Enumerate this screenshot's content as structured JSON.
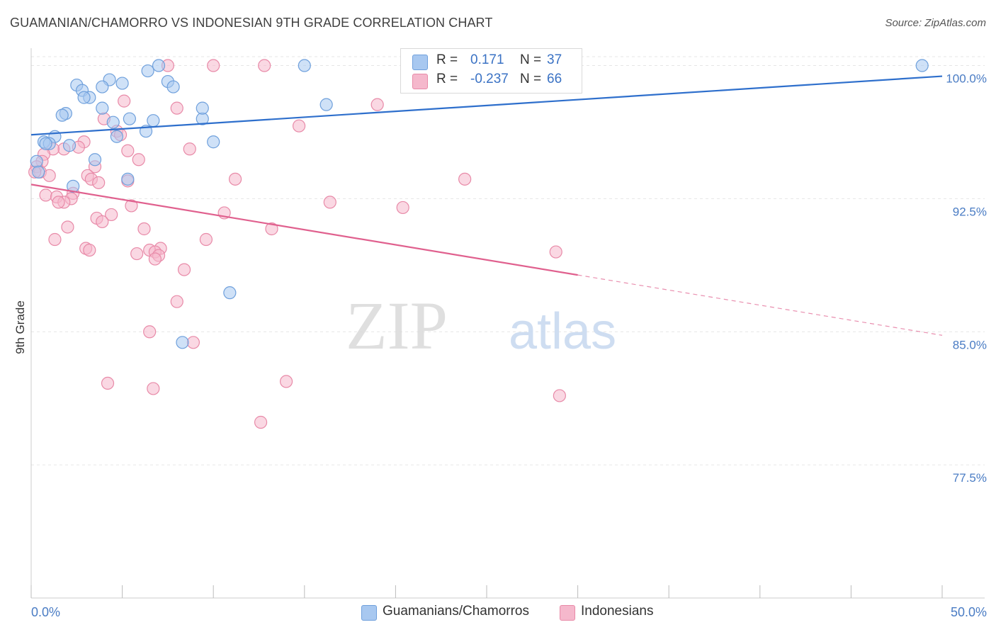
{
  "header": {
    "title": "GUAMANIAN/CHAMORRO VS INDONESIAN 9TH GRADE CORRELATION CHART",
    "source": "Source: ZipAtlas.com"
  },
  "watermark": {
    "zip": "ZIP",
    "atlas": "atlas"
  },
  "legend_top": {
    "rows": [
      {
        "r_label": "R =",
        "r_value": "0.171",
        "n_label": "N =",
        "n_value": "37",
        "color": "#a8c8f0"
      },
      {
        "r_label": "R =",
        "r_value": "-0.237",
        "n_label": "N =",
        "n_value": "66",
        "color": "#f5b8cc"
      }
    ]
  },
  "legend_bottom": {
    "items": [
      {
        "label": "Guamanians/Chamorros",
        "color": "#a8c8f0"
      },
      {
        "label": "Indonesians",
        "color": "#f5b8cc"
      }
    ]
  },
  "chart_data": {
    "type": "scatter",
    "title": "GUAMANIAN/CHAMORRO VS INDONESIAN 9TH GRADE CORRELATION CHART",
    "xlabel": "",
    "ylabel": "9th Grade",
    "xlim": [
      0,
      50
    ],
    "ylim": [
      70.0,
      100.5
    ],
    "x_tick_labels": [
      "0.0%",
      "50.0%"
    ],
    "y_ticks": [
      77.5,
      85.0,
      92.5,
      100.0
    ],
    "y_tick_labels": [
      "77.5%",
      "85.0%",
      "92.5%",
      "100.0%"
    ],
    "grid": true,
    "legend_position": "bottom",
    "series": [
      {
        "name": "Guamanians/Chamorros",
        "color": "#a8c8f0",
        "stroke": "#6fa0dc",
        "line_color": "#2e6fcc",
        "trend": {
          "x": [
            0,
            50
          ],
          "y": [
            96.1,
            99.4
          ]
        },
        "points": [
          [
            7.0,
            100.0
          ],
          [
            6.4,
            99.7
          ],
          [
            7.5,
            99.1
          ],
          [
            7.8,
            98.8
          ],
          [
            4.3,
            99.2
          ],
          [
            5.0,
            99.0
          ],
          [
            2.5,
            98.9
          ],
          [
            3.9,
            98.8
          ],
          [
            2.8,
            98.6
          ],
          [
            3.2,
            98.2
          ],
          [
            2.9,
            98.2
          ],
          [
            3.9,
            97.6
          ],
          [
            1.9,
            97.3
          ],
          [
            1.7,
            97.2
          ],
          [
            5.4,
            97.0
          ],
          [
            6.7,
            96.9
          ],
          [
            4.5,
            96.8
          ],
          [
            9.4,
            97.0
          ],
          [
            9.4,
            97.6
          ],
          [
            6.3,
            96.3
          ],
          [
            4.7,
            96.0
          ],
          [
            1.3,
            96.0
          ],
          [
            0.7,
            95.7
          ],
          [
            1.0,
            95.6
          ],
          [
            0.8,
            95.6
          ],
          [
            2.1,
            95.5
          ],
          [
            10.0,
            95.7
          ],
          [
            3.5,
            94.7
          ],
          [
            0.3,
            94.6
          ],
          [
            0.4,
            94.0
          ],
          [
            2.3,
            93.2
          ],
          [
            5.3,
            93.6
          ],
          [
            10.9,
            87.2
          ],
          [
            8.3,
            84.4
          ],
          [
            15.0,
            100.0
          ],
          [
            16.2,
            97.8
          ],
          [
            48.9,
            100.0
          ]
        ]
      },
      {
        "name": "Indonesians",
        "color": "#f5b8cc",
        "stroke": "#e88aa8",
        "line_color": "#e0608e",
        "trend": {
          "x": [
            0,
            30
          ],
          "y": [
            93.3,
            88.2
          ]
        },
        "trend_dashed": {
          "x": [
            30,
            50
          ],
          "y": [
            88.2,
            84.8
          ]
        },
        "points": [
          [
            7.5,
            100.0
          ],
          [
            10.0,
            100.0
          ],
          [
            12.8,
            100.0
          ],
          [
            5.1,
            98.0
          ],
          [
            8.0,
            97.6
          ],
          [
            19.0,
            97.8
          ],
          [
            4.0,
            97.0
          ],
          [
            14.7,
            96.6
          ],
          [
            4.7,
            96.3
          ],
          [
            4.9,
            96.1
          ],
          [
            2.9,
            95.7
          ],
          [
            2.6,
            95.4
          ],
          [
            1.8,
            95.3
          ],
          [
            1.2,
            95.3
          ],
          [
            8.7,
            95.3
          ],
          [
            5.3,
            95.2
          ],
          [
            0.7,
            95.0
          ],
          [
            5.9,
            94.7
          ],
          [
            0.6,
            94.6
          ],
          [
            0.3,
            94.3
          ],
          [
            0.5,
            94.0
          ],
          [
            0.2,
            94.0
          ],
          [
            3.5,
            94.3
          ],
          [
            3.1,
            93.8
          ],
          [
            1.0,
            93.8
          ],
          [
            3.3,
            93.6
          ],
          [
            3.7,
            93.4
          ],
          [
            5.3,
            93.5
          ],
          [
            11.2,
            93.6
          ],
          [
            23.8,
            93.6
          ],
          [
            2.3,
            92.8
          ],
          [
            0.8,
            92.7
          ],
          [
            1.4,
            92.6
          ],
          [
            2.2,
            92.5
          ],
          [
            1.8,
            92.3
          ],
          [
            1.5,
            92.3
          ],
          [
            5.5,
            92.1
          ],
          [
            20.4,
            92.0
          ],
          [
            4.4,
            91.6
          ],
          [
            3.6,
            91.4
          ],
          [
            3.9,
            91.2
          ],
          [
            6.2,
            90.8
          ],
          [
            2.0,
            90.9
          ],
          [
            1.3,
            90.2
          ],
          [
            9.6,
            90.2
          ],
          [
            3.0,
            89.7
          ],
          [
            3.2,
            89.6
          ],
          [
            7.1,
            89.7
          ],
          [
            6.5,
            89.6
          ],
          [
            5.8,
            89.4
          ],
          [
            6.8,
            89.5
          ],
          [
            7.0,
            89.3
          ],
          [
            28.8,
            89.5
          ],
          [
            6.8,
            89.1
          ],
          [
            8.4,
            88.5
          ],
          [
            8.0,
            86.7
          ],
          [
            6.5,
            85.0
          ],
          [
            8.9,
            84.4
          ],
          [
            4.2,
            82.1
          ],
          [
            6.7,
            81.8
          ],
          [
            14.0,
            82.2
          ],
          [
            29.0,
            81.4
          ],
          [
            12.6,
            79.9
          ],
          [
            16.4,
            92.3
          ],
          [
            10.6,
            91.7
          ],
          [
            13.2,
            90.8
          ]
        ]
      }
    ]
  }
}
